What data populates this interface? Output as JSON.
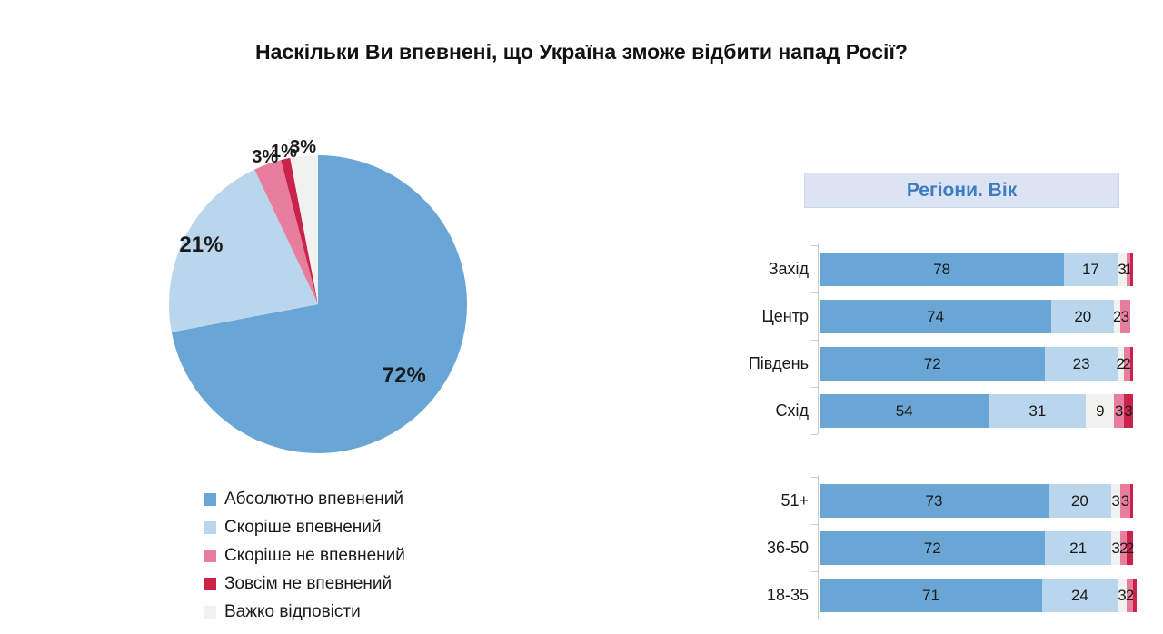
{
  "title": "Наскільки Ви впевнені, що Україна зможе відбити напад Росії?",
  "panel": {
    "header": "Регіони. Вік"
  },
  "colors": {
    "absolutely": "#6aa6d5",
    "rather": "#b9d6ec",
    "rather_not": "#e87e9d",
    "not_at_all": "#c9234b",
    "hard": "#f1f1ef",
    "header_bg": "#dce3f2",
    "header_text": "#3e7cc0",
    "axis": "#c9c9c9"
  },
  "legend": [
    {
      "label": "Абсолютно впевнений",
      "color_key": "absolutely"
    },
    {
      "label": "Скоріше впевнений",
      "color_key": "rather"
    },
    {
      "label": "Скоріше не впевнений",
      "color_key": "rather_not"
    },
    {
      "label": "Зовсім не впевнений",
      "color_key": "not_at_all"
    },
    {
      "label": "Важко відповісти",
      "color_key": "hard"
    }
  ],
  "chart_data": [
    {
      "type": "pie",
      "title": "Наскільки Ви впевнені, що Україна зможе відбити напад Росії?",
      "legend_position": "bottom-left",
      "slices": [
        {
          "label": "Абсолютно впевнений",
          "value": 72,
          "display": "72%",
          "color_key": "absolutely"
        },
        {
          "label": "Скоріше впевнений",
          "value": 21,
          "display": "21%",
          "color_key": "rather"
        },
        {
          "label": "Скоріше не впевнений",
          "value": 3,
          "display": "3%",
          "color_key": "rather_not"
        },
        {
          "label": "Зовсім не впевнений",
          "value": 1,
          "display": "1%",
          "color_key": "not_at_all"
        },
        {
          "label": "Важко відповісти",
          "value": 3,
          "display": "3%",
          "color_key": "hard"
        }
      ]
    },
    {
      "type": "bar",
      "subtype": "horizontal-stacked",
      "title": "Регіони. Вік",
      "x_max": 100,
      "grid": false,
      "segment_categories": [
        "Абсолютно впевнений",
        "Скоріше впевнений",
        "Важко відповісти",
        "Скоріше не впевнений",
        "Зовсім не впевнений"
      ],
      "segment_color_keys": [
        "absolutely",
        "rather",
        "hard",
        "rather_not",
        "not_at_all"
      ],
      "groups": [
        {
          "name": "Регіони",
          "rows": [
            {
              "category": "Захід",
              "values": [
                78,
                17,
                3,
                1,
                1
              ],
              "display": [
                "78",
                "17",
                "3",
                "1",
                ""
              ]
            },
            {
              "category": "Центр",
              "values": [
                74,
                20,
                2,
                3,
                0
              ],
              "display": [
                "74",
                "20",
                "2",
                "3",
                ""
              ]
            },
            {
              "category": "Південь",
              "values": [
                72,
                23,
                2,
                2,
                1
              ],
              "display": [
                "72",
                "23",
                "2",
                "2",
                ""
              ]
            },
            {
              "category": "Схід",
              "values": [
                54,
                31,
                9,
                3,
                3
              ],
              "display": [
                "54",
                "31",
                "9",
                "3",
                "3"
              ]
            }
          ]
        },
        {
          "name": "Вік",
          "rows": [
            {
              "category": "51+",
              "values": [
                73,
                20,
                3,
                3,
                1
              ],
              "display": [
                "73",
                "20",
                "3",
                "3",
                ""
              ]
            },
            {
              "category": "36-50",
              "values": [
                72,
                21,
                3,
                2,
                2
              ],
              "display": [
                "72",
                "21",
                "3",
                "2",
                "2"
              ]
            },
            {
              "category": "18-35",
              "values": [
                71,
                24,
                3,
                2,
                1
              ],
              "display": [
                "71",
                "24",
                "3",
                "2",
                ""
              ]
            }
          ]
        }
      ]
    }
  ]
}
